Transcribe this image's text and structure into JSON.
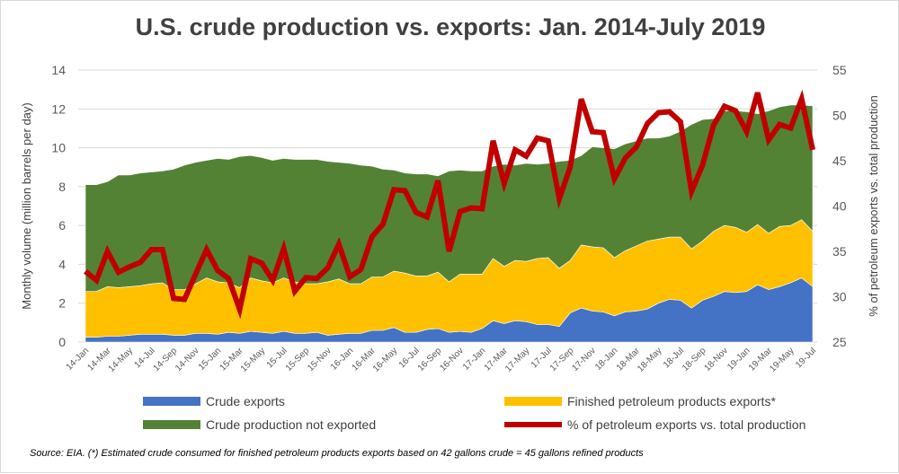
{
  "chart_data": {
    "type": "area",
    "title": "U.S. crude production vs. exports: Jan. 2014-July 2019",
    "ylabel": "Monthly volume (million barrels per day)",
    "y2label": "% of petroleum exports vs. total production",
    "ylim": [
      0,
      14
    ],
    "yticks": [
      0,
      2,
      4,
      6,
      8,
      10,
      12,
      14
    ],
    "y2lim": [
      25,
      55
    ],
    "y2ticks": [
      25,
      30,
      35,
      40,
      45,
      50,
      55
    ],
    "grid": true,
    "stacked": true,
    "legend_position": "bottom",
    "categories": [
      "14-Jan",
      "14-Feb",
      "14-Mar",
      "14-Apr",
      "14-May",
      "14-Jun",
      "14-Jul",
      "14-Aug",
      "14-Sep",
      "14-Oct",
      "14-Nov",
      "14-Dec",
      "15-Jan",
      "15-Feb",
      "15-Mar",
      "15-Apr",
      "15-May",
      "15-Jun",
      "15-Jul",
      "15-Aug",
      "15-Sep",
      "15-Oct",
      "15-Nov",
      "15-Dec",
      "16-Jan",
      "16-Feb",
      "16-Mar",
      "16-Apr",
      "16-May",
      "16-Jun",
      "16-Jul",
      "16-Aug",
      "16-Sep",
      "16-Oct",
      "16-Nov",
      "16-Dec",
      "17-Jan",
      "17-Feb",
      "17-Mar",
      "17-Apr",
      "17-May",
      "17-Jun",
      "17-Jul",
      "17-Aug",
      "17-Sep",
      "17-Oct",
      "17-Nov",
      "17-Dec",
      "18-Jan",
      "18-Feb",
      "18-Mar",
      "18-Apr",
      "18-May",
      "18-Jun",
      "18-Jul",
      "18-Aug",
      "18-Sep",
      "18-Oct",
      "18-Nov",
      "18-Dec",
      "19-Jan",
      "19-Feb",
      "19-Mar",
      "19-Apr",
      "19-May",
      "19-Jun",
      "19-Jul"
    ],
    "series": [
      {
        "name": "Crude exports",
        "axis": "left",
        "kind": "area",
        "color": "#4472c4",
        "values": [
          0.25,
          0.25,
          0.3,
          0.3,
          0.35,
          0.4,
          0.4,
          0.4,
          0.35,
          0.35,
          0.45,
          0.45,
          0.4,
          0.5,
          0.45,
          0.55,
          0.5,
          0.45,
          0.55,
          0.45,
          0.45,
          0.5,
          0.35,
          0.4,
          0.45,
          0.45,
          0.6,
          0.6,
          0.75,
          0.5,
          0.5,
          0.65,
          0.7,
          0.5,
          0.55,
          0.5,
          0.7,
          1.1,
          0.95,
          1.1,
          1.05,
          0.9,
          0.9,
          0.8,
          1.5,
          1.75,
          1.6,
          1.55,
          1.35,
          1.55,
          1.6,
          1.7,
          2.0,
          2.2,
          2.15,
          1.75,
          2.15,
          2.35,
          2.6,
          2.55,
          2.6,
          2.95,
          2.7,
          2.85,
          3.05,
          3.3,
          2.85
        ]
      },
      {
        "name": "Finished petroleum products exports*",
        "axis": "left",
        "kind": "area",
        "color": "#ffc000",
        "values": [
          2.35,
          2.35,
          2.55,
          2.5,
          2.5,
          2.5,
          2.6,
          2.65,
          2.35,
          2.35,
          2.55,
          2.85,
          2.7,
          2.55,
          2.35,
          2.75,
          2.65,
          2.6,
          2.75,
          2.65,
          2.55,
          2.5,
          2.75,
          2.85,
          2.55,
          2.55,
          2.75,
          2.75,
          2.9,
          3.05,
          2.9,
          2.75,
          2.9,
          2.6,
          2.95,
          3.0,
          2.8,
          3.2,
          2.95,
          3.1,
          3.1,
          3.4,
          3.45,
          3.0,
          2.7,
          3.25,
          3.3,
          3.3,
          3.0,
          3.15,
          3.35,
          3.5,
          3.3,
          3.2,
          3.25,
          3.05,
          3.05,
          3.35,
          3.4,
          3.35,
          3.05,
          3.1,
          2.9,
          3.1,
          2.95,
          3.0,
          2.85
        ]
      },
      {
        "name": "Crude production not exported",
        "axis": "left",
        "kind": "area",
        "color": "#548235",
        "values": [
          5.5,
          5.5,
          5.4,
          5.8,
          5.75,
          5.8,
          5.75,
          5.75,
          6.2,
          6.4,
          6.25,
          6.05,
          6.35,
          6.35,
          6.75,
          6.3,
          6.35,
          6.3,
          6.15,
          6.3,
          6.4,
          6.4,
          6.2,
          6.0,
          6.2,
          6.1,
          5.7,
          5.55,
          5.2,
          5.15,
          5.25,
          5.25,
          4.95,
          5.7,
          5.35,
          5.3,
          5.3,
          4.75,
          5.25,
          4.9,
          5.05,
          4.85,
          4.85,
          5.5,
          5.15,
          4.6,
          5.15,
          5.15,
          5.6,
          5.5,
          5.4,
          5.3,
          5.2,
          5.2,
          5.45,
          6.4,
          6.25,
          5.8,
          5.9,
          6.0,
          6.2,
          5.7,
          6.3,
          6.15,
          6.2,
          5.9,
          6.45
        ]
      },
      {
        "name": "% of petroleum exports vs. total production",
        "axis": "right",
        "kind": "line",
        "color": "#c00000",
        "values": [
          32.8,
          31.8,
          35,
          32.7,
          33.3,
          33.8,
          35.2,
          35.2,
          29.8,
          29.7,
          32.5,
          35.2,
          32.9,
          32,
          28.6,
          34.2,
          33.7,
          31.8,
          35.3,
          30.6,
          32.1,
          32,
          33.2,
          35.8,
          32.2,
          33,
          36.6,
          38,
          41.8,
          41.7,
          39.3,
          38.8,
          42.8,
          35,
          39.4,
          39.8,
          39.7,
          47.2,
          42.5,
          46.2,
          45.5,
          47.5,
          47.2,
          40.8,
          44.3,
          51.8,
          48.2,
          48.1,
          43,
          45.3,
          46.5,
          49.1,
          50.3,
          50.4,
          49.3,
          41.6,
          44.5,
          48.9,
          51,
          50.5,
          48.2,
          52.5,
          47.3,
          49,
          48.6,
          51.8,
          46.2
        ]
      }
    ],
    "source": "Source:  EIA. (*) Estimated  crude consumed for finished petroleum products exports based on 42 gallons crude = 45 gallons refined products"
  }
}
